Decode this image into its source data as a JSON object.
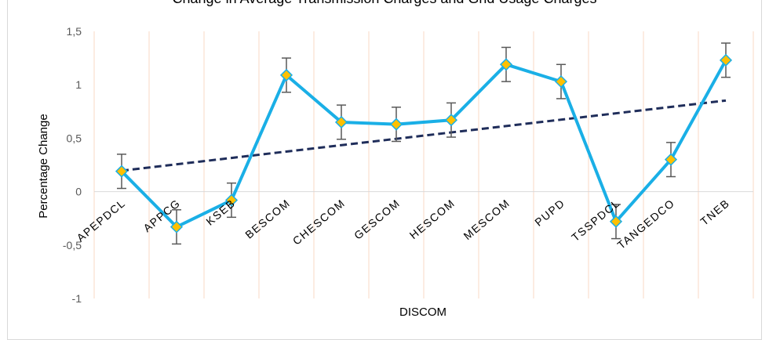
{
  "chart_data": {
    "type": "line",
    "title": "Change in Average Transmission Charges and Grid Usage Charges",
    "xlabel": "DISCOM",
    "ylabel": "Percentage Change",
    "categories": [
      "APEPDCL",
      "APPCG",
      "KSEB",
      "BESCOM",
      "CHESCOM",
      "GESCOM",
      "HESCOM",
      "MESCOM",
      "PUPD",
      "TSSPDCL",
      "TANGEDCO",
      "TNEB"
    ],
    "series": [
      {
        "values": [
          0.19,
          -0.33,
          -0.08,
          1.09,
          0.65,
          0.63,
          0.67,
          1.19,
          1.03,
          -0.28,
          0.3,
          1.23
        ],
        "error": 0.16,
        "color": "#1aafe6",
        "marker_color": "#ffc000",
        "marker": "diamond"
      }
    ],
    "trendline": {
      "type": "linear",
      "style": "dashed",
      "color": "#1f2d5a"
    },
    "yticks": [
      "1,5",
      "1",
      "0,5",
      "0",
      "-0,5",
      "-1"
    ],
    "ylim": [
      -1,
      1.5
    ],
    "grid": "vertical",
    "grid_color": "#f8d9c6",
    "legend": "none"
  }
}
